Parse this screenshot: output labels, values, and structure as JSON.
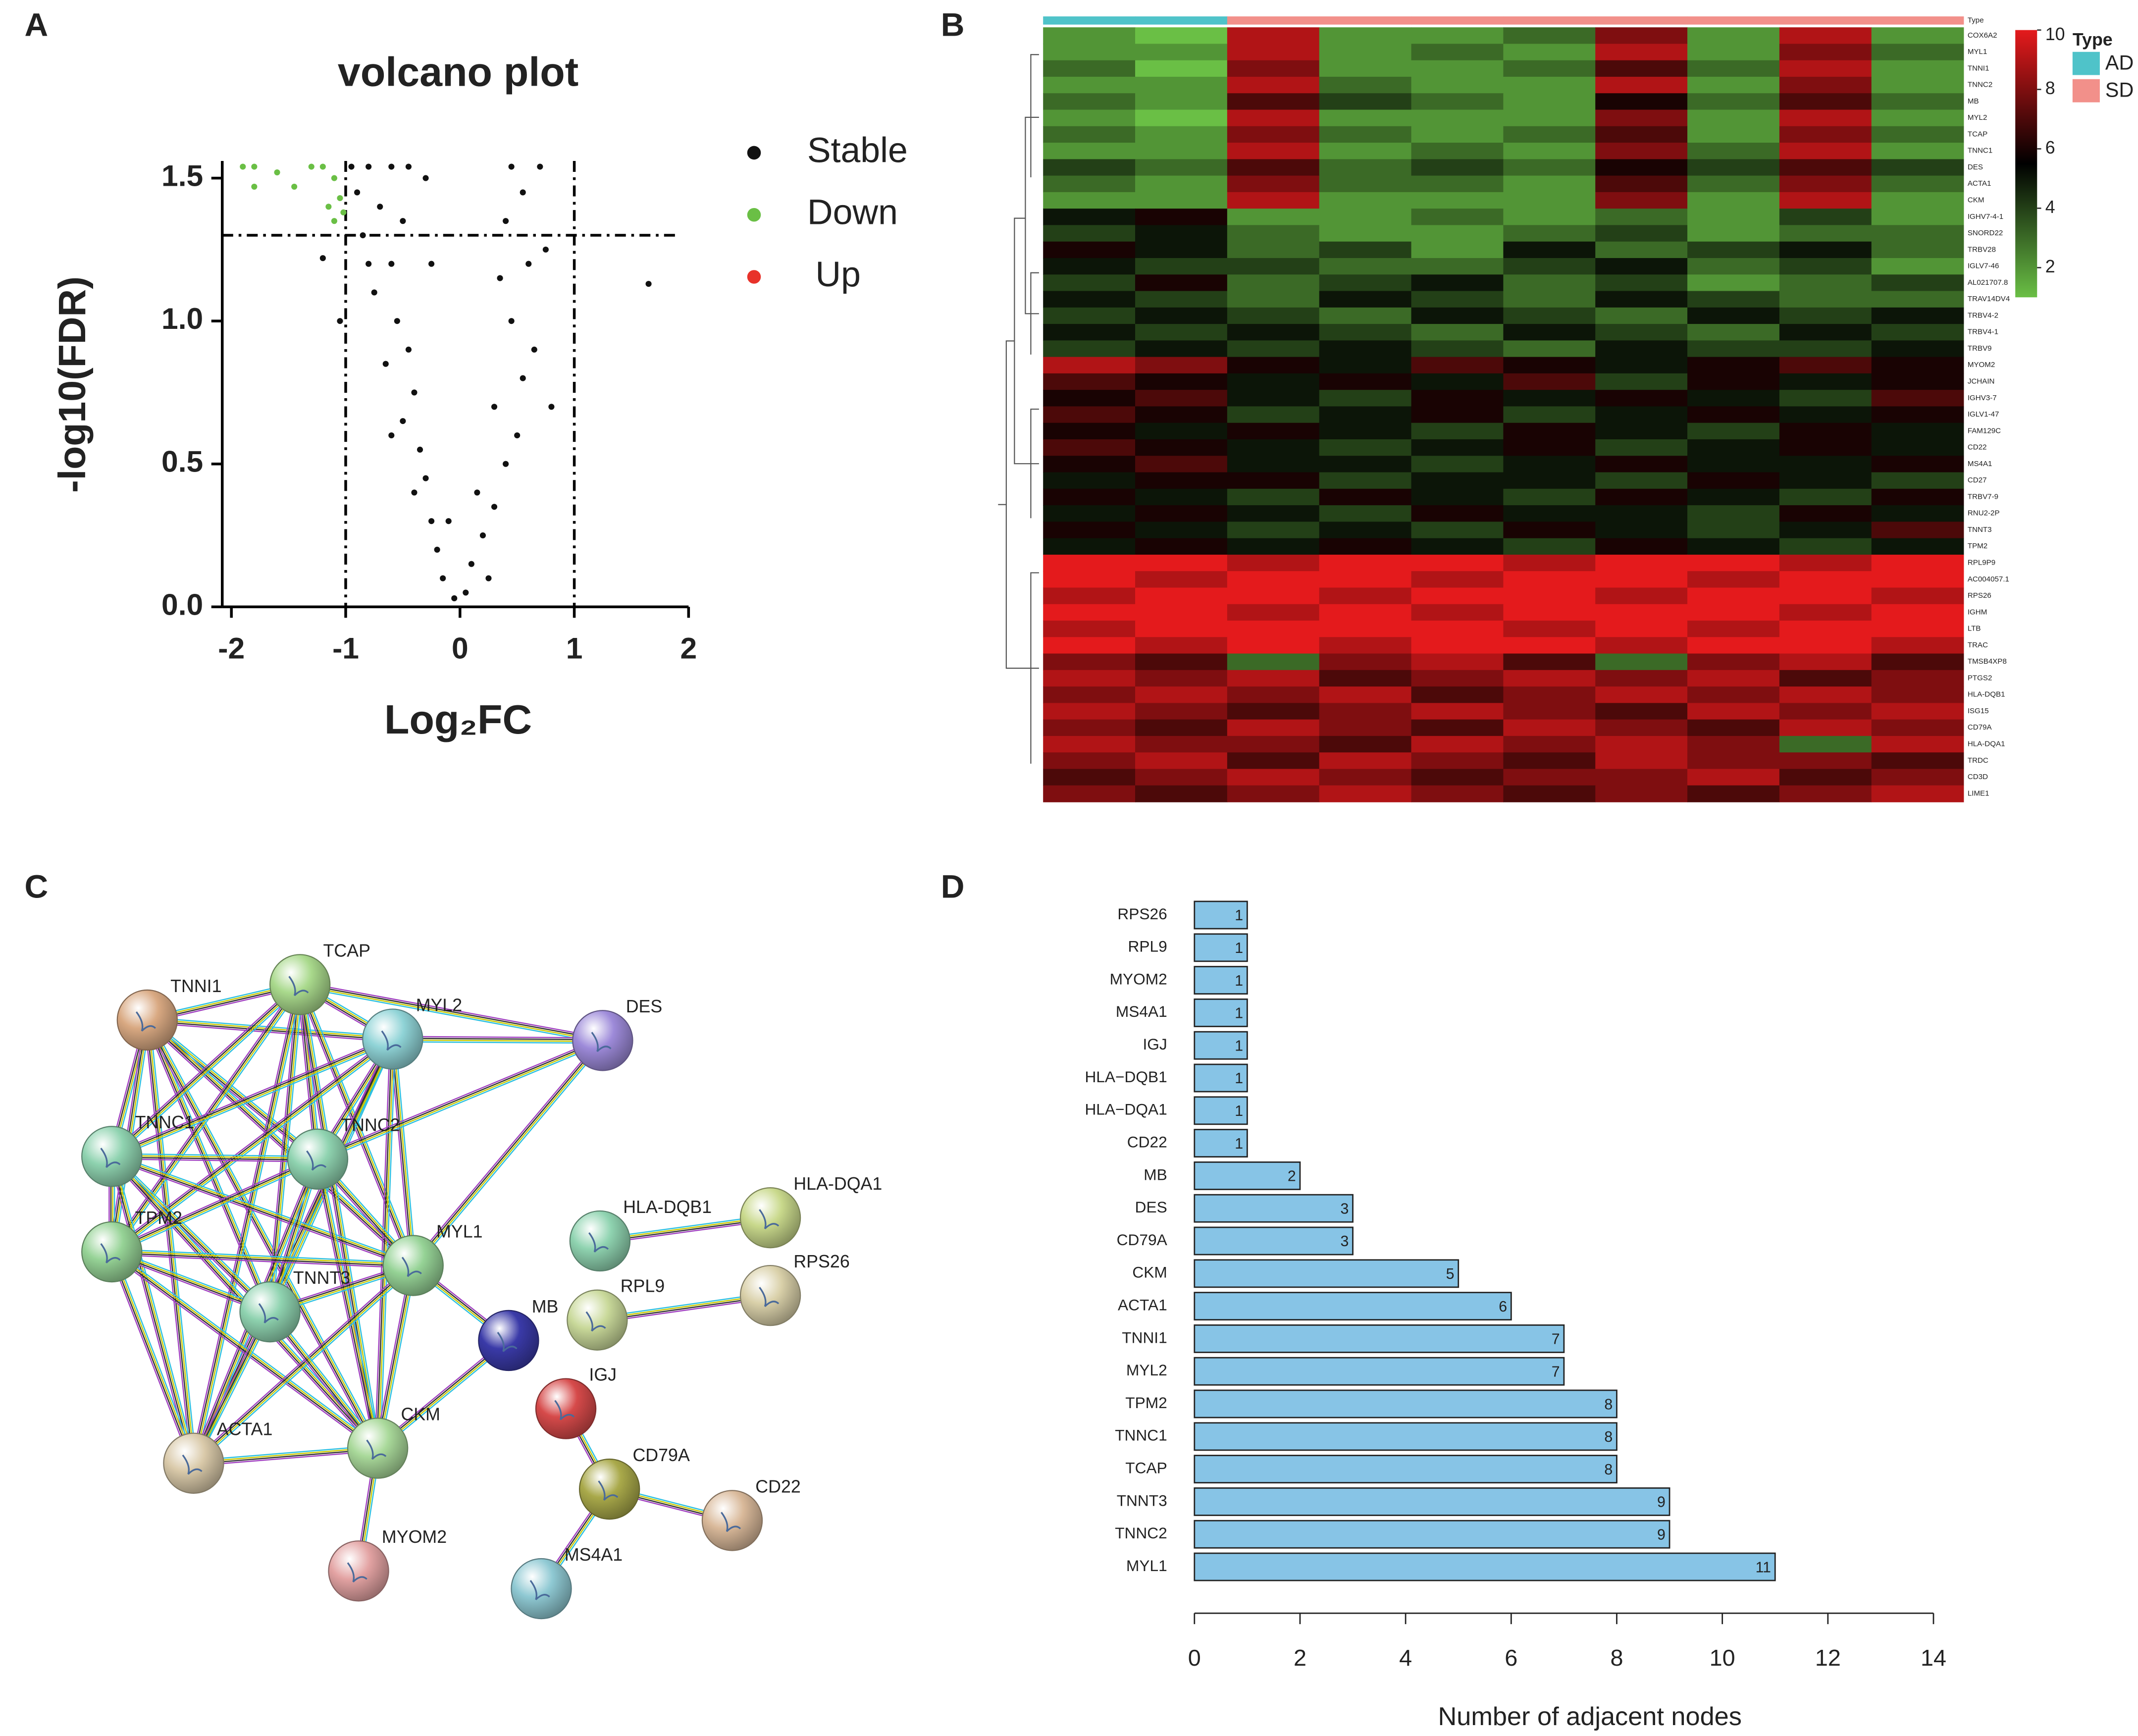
{
  "panel_labels": [
    "A",
    "B",
    "C",
    "D"
  ],
  "chart_data": [
    {
      "type": "scatter",
      "title": "volcano plot",
      "xlabel": "Log₂FC",
      "ylabel": "-log10(FDR)",
      "xlim": [
        -2.08,
        2.0
      ],
      "ylim": [
        0,
        1.56
      ],
      "xticks": [
        -2,
        -1,
        0,
        1,
        2
      ],
      "yticks": [
        {
          "value": 0,
          "label": "0.0"
        },
        {
          "value": 0.5,
          "label": "0.5"
        },
        {
          "value": 1,
          "label": "1.0"
        },
        {
          "value": 1.5,
          "label": "1.5"
        }
      ],
      "vlines": [
        -1,
        1
      ],
      "hlines": [
        1.3
      ],
      "series": [
        {
          "name": "Stable",
          "color": "#111111",
          "x": [
            -0.95,
            -0.8,
            -0.6,
            -0.45,
            -0.9,
            -0.7,
            -0.5,
            -0.85,
            -0.6,
            -0.75,
            -0.55,
            -0.45,
            -0.65,
            -0.4,
            -0.5,
            -0.35,
            -0.3,
            -0.4,
            -0.25,
            -0.2,
            -0.15,
            -0.05,
            0.05,
            0.1,
            0.2,
            0.3,
            0.4,
            0.5,
            0.55,
            0.45,
            0.6,
            0.4,
            0.45,
            0.7,
            0.55,
            -1.2,
            -0.3,
            -0.25,
            0.65,
            0.3,
            1.65,
            0.8,
            0.25,
            -0.1,
            0.15,
            -0.6,
            -0.8,
            -1.05,
            0.35,
            0.75
          ],
          "values": [
            1.54,
            1.54,
            1.54,
            1.54,
            1.45,
            1.4,
            1.35,
            1.3,
            1.2,
            1.1,
            1.0,
            0.9,
            0.85,
            0.75,
            0.65,
            0.55,
            0.45,
            0.4,
            0.3,
            0.2,
            0.1,
            0.03,
            0.05,
            0.15,
            0.25,
            0.35,
            0.5,
            0.6,
            0.8,
            1.0,
            1.2,
            1.35,
            1.54,
            1.54,
            1.45,
            1.22,
            1.5,
            1.2,
            0.9,
            0.7,
            1.13,
            0.7,
            0.1,
            0.3,
            0.4,
            0.6,
            1.2,
            1.0,
            1.15,
            1.25
          ]
        },
        {
          "name": "Down",
          "color": "#6abf45",
          "x": [
            -1.9,
            -1.8,
            -1.6,
            -1.45,
            -1.2,
            -1.1,
            -1.05,
            -1.15,
            -1.1,
            -1.8,
            -1.3,
            -1.02
          ],
          "values": [
            1.54,
            1.54,
            1.52,
            1.47,
            1.54,
            1.5,
            1.43,
            1.4,
            1.35,
            1.47,
            1.54,
            1.38
          ]
        },
        {
          "name": "Up",
          "color": "#e8322a",
          "x": [],
          "values": []
        }
      ]
    },
    {
      "type": "heatmap",
      "annotation_label": "Type",
      "rows": [
        "COX6A2",
        "MYL1",
        "TNNI1",
        "TNNC2",
        "MB",
        "MYL2",
        "TCAP",
        "TNNC1",
        "DES",
        "ACTA1",
        "CKM",
        "IGHV7-4-1",
        "SNORD22",
        "TRBV28",
        "IGLV7-46",
        "AL021707.8",
        "TRAV14DV4",
        "TRBV4-2",
        "TRBV4-1",
        "TRBV9",
        "MYOM2",
        "JCHAIN",
        "IGHV3-7",
        "IGLV1-47",
        "FAM129C",
        "CD22",
        "MS4A1",
        "CD27",
        "TRBV7-9",
        "RNU2-2P",
        "TNNT3",
        "TPM2",
        "RPL9P9",
        "AC004057.1",
        "RPS26",
        "IGHM",
        "LTB",
        "TRAC",
        "TMSB4XP8",
        "PTGS2",
        "HLA-DQB1",
        "ISG15",
        "CD79A",
        "HLA-DQA1",
        "TRDC",
        "CD3D",
        "LIME1"
      ],
      "column_types": [
        "AD",
        "AD",
        "SD",
        "SD",
        "SD",
        "SD",
        "SD",
        "SD",
        "SD",
        "SD"
      ],
      "type_legend": {
        "title": "Type",
        "names": [
          "AD",
          "SD"
        ],
        "colors": [
          "#4fc3c9",
          "#f2908a"
        ]
      },
      "zlim": [
        1,
        10
      ],
      "zticks": [
        2,
        4,
        6,
        8,
        10
      ],
      "colors": [
        "#6abf45",
        "#000000",
        "#e41a1c"
      ],
      "values": [
        [
          2,
          1,
          9,
          2,
          2,
          3,
          8,
          2,
          9,
          2
        ],
        [
          2,
          2,
          9,
          2,
          3,
          2,
          9,
          2,
          8,
          3
        ],
        [
          3,
          1,
          8,
          2,
          2,
          3,
          7,
          3,
          9,
          2
        ],
        [
          2,
          2,
          9,
          3,
          2,
          2,
          9,
          2,
          8,
          2
        ],
        [
          3,
          2,
          7,
          4,
          3,
          2,
          6,
          3,
          7,
          3
        ],
        [
          2,
          1,
          9,
          2,
          2,
          2,
          8,
          2,
          9,
          2
        ],
        [
          3,
          2,
          8,
          3,
          2,
          3,
          7,
          2,
          8,
          3
        ],
        [
          2,
          2,
          9,
          2,
          3,
          2,
          8,
          3,
          9,
          2
        ],
        [
          4,
          3,
          7,
          3,
          4,
          3,
          6,
          4,
          7,
          4
        ],
        [
          3,
          2,
          8,
          3,
          3,
          2,
          7,
          3,
          8,
          3
        ],
        [
          2,
          2,
          9,
          2,
          2,
          2,
          8,
          2,
          9,
          2
        ],
        [
          5,
          6,
          2,
          2,
          3,
          2,
          3,
          2,
          4,
          2
        ],
        [
          4,
          5,
          3,
          2,
          2,
          3,
          4,
          2,
          3,
          3
        ],
        [
          6,
          5,
          3,
          4,
          2,
          5,
          3,
          4,
          5,
          3
        ],
        [
          5,
          4,
          4,
          3,
          3,
          4,
          5,
          3,
          4,
          2
        ],
        [
          4,
          6,
          3,
          4,
          5,
          3,
          4,
          2,
          3,
          4
        ],
        [
          5,
          4,
          3,
          5,
          4,
          3,
          5,
          4,
          3,
          3
        ],
        [
          4,
          5,
          4,
          3,
          5,
          4,
          3,
          5,
          4,
          5
        ],
        [
          5,
          4,
          5,
          4,
          3,
          5,
          4,
          3,
          5,
          4
        ],
        [
          4,
          5,
          4,
          5,
          4,
          3,
          5,
          4,
          4,
          5
        ],
        [
          9,
          8,
          6,
          5,
          7,
          6,
          5,
          6,
          7,
          6
        ],
        [
          7,
          6,
          5,
          6,
          5,
          7,
          4,
          6,
          5,
          6
        ],
        [
          6,
          7,
          5,
          4,
          6,
          5,
          6,
          5,
          4,
          7
        ],
        [
          7,
          6,
          4,
          5,
          6,
          4,
          5,
          6,
          5,
          6
        ],
        [
          6,
          5,
          6,
          5,
          4,
          6,
          5,
          4,
          6,
          5
        ],
        [
          7,
          6,
          5,
          4,
          5,
          6,
          4,
          5,
          6,
          5
        ],
        [
          6,
          7,
          5,
          5,
          4,
          5,
          6,
          5,
          5,
          6
        ],
        [
          5,
          6,
          6,
          4,
          5,
          5,
          4,
          6,
          5,
          4
        ],
        [
          6,
          5,
          4,
          6,
          5,
          4,
          6,
          5,
          4,
          6
        ],
        [
          5,
          6,
          5,
          4,
          6,
          5,
          5,
          4,
          6,
          5
        ],
        [
          6,
          5,
          4,
          5,
          4,
          6,
          5,
          4,
          5,
          7
        ],
        [
          5,
          6,
          5,
          6,
          5,
          4,
          6,
          5,
          4,
          5
        ],
        [
          10,
          10,
          9,
          10,
          10,
          9,
          10,
          10,
          9,
          10
        ],
        [
          10,
          9,
          10,
          10,
          9,
          10,
          10,
          9,
          10,
          10
        ],
        [
          9,
          10,
          10,
          9,
          10,
          10,
          9,
          10,
          10,
          9
        ],
        [
          10,
          10,
          9,
          10,
          9,
          10,
          10,
          10,
          9,
          10
        ],
        [
          9,
          10,
          10,
          10,
          10,
          9,
          10,
          9,
          10,
          10
        ],
        [
          10,
          9,
          10,
          9,
          10,
          10,
          9,
          10,
          10,
          9
        ],
        [
          8,
          7,
          3,
          8,
          9,
          7,
          3,
          8,
          9,
          7
        ],
        [
          9,
          8,
          9,
          7,
          8,
          9,
          8,
          9,
          7,
          8
        ],
        [
          8,
          9,
          8,
          9,
          7,
          8,
          9,
          8,
          9,
          8
        ],
        [
          9,
          8,
          7,
          8,
          9,
          8,
          7,
          9,
          8,
          9
        ],
        [
          8,
          7,
          9,
          8,
          7,
          9,
          8,
          7,
          9,
          8
        ],
        [
          9,
          8,
          8,
          7,
          9,
          8,
          9,
          8,
          3,
          9
        ],
        [
          8,
          9,
          7,
          9,
          8,
          7,
          9,
          8,
          8,
          7
        ],
        [
          7,
          8,
          9,
          8,
          7,
          8,
          8,
          9,
          7,
          8
        ],
        [
          8,
          7,
          8,
          9,
          8,
          7,
          8,
          7,
          8,
          9
        ]
      ]
    },
    {
      "type": "bar",
      "orientation": "horizontal",
      "xlabel": "Number of adjacent nodes",
      "categories": [
        "RPS26",
        "RPL9",
        "MYOM2",
        "MS4A1",
        "IGJ",
        "HLA−DQB1",
        "HLA−DQA1",
        "CD22",
        "MB",
        "DES",
        "CD79A",
        "CKM",
        "ACTA1",
        "TNNI1",
        "MYL2",
        "TPM2",
        "TNNC1",
        "TCAP",
        "TNNT3",
        "TNNC2",
        "MYL1"
      ],
      "values": [
        1,
        1,
        1,
        1,
        1,
        1,
        1,
        1,
        2,
        3,
        3,
        5,
        6,
        7,
        7,
        8,
        8,
        8,
        9,
        9,
        11
      ],
      "color": "#87c4e6",
      "xlim": [
        0,
        14
      ],
      "xticks": [
        0,
        2,
        4,
        6,
        8,
        10,
        12,
        14
      ]
    }
  ],
  "network": {
    "nodes": [
      "TNNI1",
      "TCAP",
      "MYL2",
      "DES",
      "TNNC1",
      "TNNC2",
      "TPM2",
      "MYL1",
      "TNNT3",
      "MB",
      "ACTA1",
      "CKM",
      "MYOM2",
      "HLA-DQB1",
      "HLA-DQA1",
      "RPL9",
      "RPS26",
      "IGJ",
      "CD79A",
      "CD22",
      "MS4A1"
    ]
  }
}
